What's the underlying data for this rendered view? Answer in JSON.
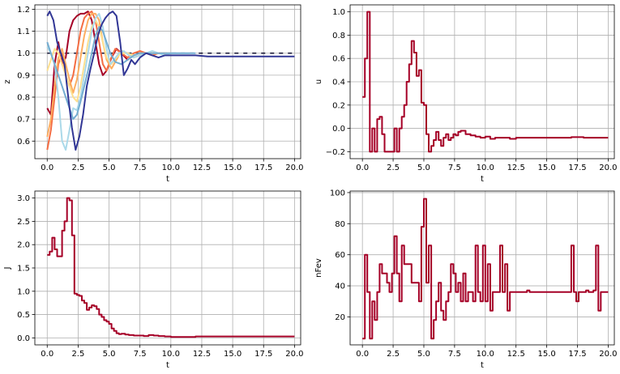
{
  "chart_data": [
    {
      "type": "line",
      "xlabel": "t",
      "ylabel": "z",
      "xlim": [
        -1,
        20.5
      ],
      "ylim": [
        0.52,
        1.22
      ],
      "xticks": [
        "0.0",
        "2.5",
        "5.0",
        "7.5",
        "10.0",
        "12.5",
        "15.0",
        "17.5",
        "20.0"
      ],
      "yticks": [
        "0.6",
        "0.7",
        "0.8",
        "0.9",
        "1.0",
        "1.1",
        "1.2"
      ],
      "grid": true,
      "reference": {
        "y": 1.0,
        "style": "dashed",
        "color": "#1a1a3a"
      },
      "series": [
        {
          "color": "#a50026",
          "x": [
            0,
            0.3,
            0.6,
            0.9,
            1.2,
            1.5,
            1.8,
            2.1,
            2.4,
            2.7,
            3.0,
            3.3,
            3.6,
            3.9,
            4.2,
            4.5,
            4.8,
            5.2,
            5.6,
            6.0,
            6.5,
            7.0,
            7.5,
            8.0,
            8.5,
            9.0
          ],
          "y": [
            0.75,
            0.72,
            0.95,
            1.05,
            0.95,
            0.98,
            1.1,
            1.15,
            1.17,
            1.18,
            1.18,
            1.19,
            1.15,
            1.05,
            0.95,
            0.9,
            0.92,
            0.98,
            1.02,
            1.0,
            0.97,
            0.99,
            1.0,
            1.0,
            1.0,
            1.0
          ]
        },
        {
          "color": "#f46d43",
          "x": [
            0,
            0.3,
            0.6,
            0.9,
            1.2,
            1.5,
            1.8,
            2.1,
            2.4,
            2.7,
            3.0,
            3.3,
            3.6,
            3.9,
            4.2,
            4.5,
            4.8,
            5.1,
            5.5,
            6.0,
            6.5,
            7.0,
            7.5,
            8.0,
            8.5,
            9.0,
            9.5
          ],
          "y": [
            0.56,
            0.65,
            0.8,
            0.95,
            1.0,
            0.9,
            0.85,
            0.9,
            1.0,
            1.1,
            1.16,
            1.18,
            1.19,
            1.15,
            1.05,
            0.95,
            0.92,
            0.97,
            1.02,
            1.0,
            0.98,
            1.0,
            1.01,
            1.0,
            0.99,
            1.0,
            1.0
          ]
        },
        {
          "color": "#fdae61",
          "x": [
            0,
            0.3,
            0.6,
            0.9,
            1.2,
            1.5,
            1.8,
            2.1,
            2.4,
            2.7,
            3.0,
            3.3,
            3.6,
            3.9,
            4.2,
            4.5,
            4.8,
            5.2,
            5.6,
            6.0,
            6.5,
            7.0,
            7.5,
            8.0,
            8.5,
            9.0,
            9.5,
            10.0
          ],
          "y": [
            0.62,
            0.7,
            0.85,
            0.98,
            1.02,
            0.95,
            0.88,
            0.82,
            0.88,
            0.98,
            1.08,
            1.15,
            1.18,
            1.18,
            1.15,
            1.05,
            0.97,
            0.93,
            0.97,
            1.01,
            1.0,
            0.98,
            0.99,
            1.0,
            1.0,
            1.0,
            1.0,
            1.0
          ]
        },
        {
          "color": "#fee090",
          "x": [
            0,
            0.3,
            0.6,
            0.9,
            1.2,
            1.5,
            1.8,
            2.1,
            2.4,
            2.7,
            3.0,
            3.3,
            3.6,
            3.9,
            4.2,
            4.5,
            4.8,
            5.2,
            5.6,
            6.0,
            6.5,
            7.0,
            7.5,
            8.0,
            8.5,
            9.0
          ],
          "y": [
            0.92,
            0.97,
            1.02,
            1.0,
            0.95,
            0.9,
            0.85,
            0.8,
            0.78,
            0.85,
            0.95,
            1.05,
            1.12,
            1.15,
            1.12,
            1.05,
            0.98,
            0.95,
            0.98,
            1.0,
            1.0,
            0.99,
            1.0,
            1.0,
            1.0,
            1.0
          ]
        },
        {
          "color": "#abd9e9",
          "x": [
            0,
            0.3,
            0.6,
            0.9,
            1.2,
            1.5,
            1.8,
            2.1,
            2.4,
            2.7,
            3.0,
            3.3,
            3.6,
            3.9,
            4.2,
            4.5,
            4.8,
            5.1,
            5.4,
            5.8,
            6.2,
            6.6,
            7.0,
            7.5,
            8.0,
            8.5,
            9.0,
            9.5,
            10.0,
            10.5,
            11.0,
            11.5
          ],
          "y": [
            1.03,
            1.0,
            0.95,
            0.8,
            0.6,
            0.56,
            0.65,
            0.75,
            0.74,
            0.8,
            0.9,
            1.0,
            1.1,
            1.16,
            1.18,
            1.12,
            1.02,
            0.95,
            0.97,
            1.0,
            1.01,
            0.99,
            0.98,
            0.99,
            1.0,
            1.01,
            1.0,
            0.99,
            1.0,
            1.0,
            1.0,
            1.0
          ]
        },
        {
          "color": "#74add1",
          "x": [
            0,
            0.3,
            0.6,
            0.9,
            1.2,
            1.5,
            1.8,
            2.1,
            2.4,
            2.7,
            3.0,
            3.3,
            3.6,
            3.9,
            4.2,
            4.5,
            4.8,
            5.1,
            5.5,
            6.0,
            6.5,
            7.0,
            7.5,
            8.0,
            8.5,
            9.0,
            9.5,
            10.0,
            10.5,
            11.0,
            11.5,
            12.0
          ],
          "y": [
            1.05,
            1.0,
            0.95,
            0.9,
            0.85,
            0.8,
            0.75,
            0.7,
            0.72,
            0.78,
            0.85,
            0.92,
            1.0,
            1.08,
            1.12,
            1.1,
            1.05,
            1.0,
            0.96,
            0.95,
            0.97,
            0.99,
            1.0,
            1.0,
            1.0,
            1.0,
            1.0,
            1.0,
            1.0,
            1.0,
            1.0,
            1.0
          ]
        },
        {
          "color": "#313695",
          "x": [
            0,
            0.2,
            0.5,
            0.8,
            1.1,
            1.4,
            1.7,
            2.0,
            2.3,
            2.6,
            2.9,
            3.2,
            3.5,
            3.8,
            4.1,
            4.4,
            4.7,
            5.0,
            5.3,
            5.6,
            5.9,
            6.2,
            6.5,
            6.8,
            7.1,
            7.5,
            8.0,
            8.5,
            9.0,
            9.5,
            10.0,
            11.0,
            12.0,
            13.0,
            14.0,
            15.0,
            16.0,
            17.0,
            18.0,
            19.0,
            20.0
          ],
          "y": [
            1.17,
            1.19,
            1.15,
            1.05,
            1.0,
            0.95,
            0.8,
            0.66,
            0.56,
            0.62,
            0.72,
            0.85,
            0.93,
            1.0,
            1.08,
            1.13,
            1.16,
            1.18,
            1.19,
            1.17,
            1.05,
            0.9,
            0.93,
            0.97,
            0.95,
            0.98,
            1.0,
            0.99,
            0.98,
            0.99,
            0.99,
            0.99,
            0.99,
            0.985,
            0.985,
            0.985,
            0.985,
            0.985,
            0.985,
            0.985,
            0.985
          ]
        }
      ]
    },
    {
      "type": "line",
      "xlabel": "t",
      "ylabel": "u",
      "xlim": [
        -1,
        20.5
      ],
      "ylim": [
        -0.26,
        1.06
      ],
      "xticks": [
        "0.0",
        "2.5",
        "5.0",
        "7.5",
        "10.0",
        "12.5",
        "15.0",
        "17.5",
        "20.0"
      ],
      "yticks": [
        "−0.2",
        "0.0",
        "0.2",
        "0.4",
        "0.6",
        "0.8",
        "1.0"
      ],
      "grid": true,
      "step": true,
      "series": [
        {
          "color": "#a50026",
          "x": [
            0,
            0.2,
            0.4,
            0.6,
            0.8,
            1.0,
            1.2,
            1.4,
            1.6,
            1.8,
            2.0,
            2.2,
            2.4,
            2.6,
            2.8,
            3.0,
            3.2,
            3.4,
            3.6,
            3.8,
            4.0,
            4.2,
            4.4,
            4.6,
            4.8,
            5.0,
            5.2,
            5.4,
            5.6,
            5.8,
            6.0,
            6.2,
            6.4,
            6.6,
            6.8,
            7.0,
            7.2,
            7.4,
            7.6,
            7.8,
            8.0,
            8.4,
            8.8,
            9.2,
            9.6,
            10.0,
            10.4,
            10.8,
            11.2,
            11.6,
            12.0,
            12.5,
            13.0,
            13.5,
            14.0,
            15.0,
            16.0,
            17.0,
            18.0,
            19.0,
            20.0
          ],
          "y": [
            0.27,
            0.6,
            1.0,
            -0.2,
            0.0,
            -0.2,
            0.08,
            0.1,
            -0.05,
            -0.2,
            -0.2,
            -0.2,
            -0.2,
            0.0,
            -0.2,
            0.0,
            0.1,
            0.2,
            0.4,
            0.55,
            0.75,
            0.65,
            0.45,
            0.5,
            0.22,
            0.2,
            -0.05,
            -0.2,
            -0.15,
            -0.1,
            -0.03,
            -0.1,
            -0.15,
            -0.08,
            -0.05,
            -0.1,
            -0.08,
            -0.05,
            -0.06,
            -0.03,
            -0.02,
            -0.05,
            -0.06,
            -0.07,
            -0.08,
            -0.07,
            -0.09,
            -0.08,
            -0.08,
            -0.08,
            -0.09,
            -0.08,
            -0.08,
            -0.08,
            -0.08,
            -0.08,
            -0.08,
            -0.075,
            -0.08,
            -0.08,
            -0.08
          ]
        }
      ]
    },
    {
      "type": "line",
      "xlabel": "t",
      "ylabel": "J",
      "xlim": [
        -1,
        20.5
      ],
      "ylim": [
        -0.15,
        3.15
      ],
      "xticks": [
        "0.0",
        "2.5",
        "5.0",
        "7.5",
        "10.0",
        "12.5",
        "15.0",
        "17.5",
        "20.0"
      ],
      "yticks": [
        "0.0",
        "0.5",
        "1.0",
        "1.5",
        "2.0",
        "2.5",
        "3.0"
      ],
      "grid": true,
      "step": true,
      "series": [
        {
          "color": "#a50026",
          "x": [
            0,
            0.2,
            0.4,
            0.6,
            0.8,
            1.0,
            1.2,
            1.4,
            1.6,
            1.8,
            2.0,
            2.2,
            2.4,
            2.6,
            2.8,
            3.0,
            3.2,
            3.4,
            3.6,
            3.8,
            4.0,
            4.2,
            4.4,
            4.6,
            4.8,
            5.0,
            5.2,
            5.4,
            5.6,
            5.8,
            6.0,
            6.3,
            6.6,
            7.0,
            7.4,
            7.8,
            8.2,
            8.6,
            9.0,
            9.5,
            10.0,
            11.0,
            12.0,
            13.0,
            14.0,
            15.0,
            16.0,
            17.0,
            18.0,
            19.0,
            20.0
          ],
          "y": [
            1.78,
            1.85,
            2.15,
            1.9,
            1.75,
            1.75,
            2.3,
            2.5,
            3.0,
            2.95,
            2.2,
            0.95,
            0.92,
            0.9,
            0.8,
            0.75,
            0.6,
            0.65,
            0.7,
            0.68,
            0.62,
            0.5,
            0.45,
            0.38,
            0.35,
            0.3,
            0.2,
            0.15,
            0.1,
            0.08,
            0.09,
            0.07,
            0.06,
            0.05,
            0.05,
            0.04,
            0.06,
            0.05,
            0.04,
            0.03,
            0.02,
            0.02,
            0.03,
            0.03,
            0.03,
            0.03,
            0.03,
            0.03,
            0.03,
            0.03,
            0.03
          ]
        }
      ]
    },
    {
      "type": "line",
      "xlabel": "t",
      "ylabel": "nFev",
      "xlim": [
        -1,
        20.5
      ],
      "ylim": [
        2,
        101
      ],
      "xticks": [
        "0.0",
        "2.5",
        "5.0",
        "7.5",
        "10.0",
        "12.5",
        "15.0",
        "17.5",
        "20.0"
      ],
      "yticks": [
        "20",
        "40",
        "60",
        "80",
        "100"
      ],
      "grid": true,
      "step": true,
      "series": [
        {
          "color": "#a50026",
          "x": [
            0,
            0.2,
            0.4,
            0.6,
            0.8,
            1.0,
            1.2,
            1.4,
            1.6,
            1.8,
            2.0,
            2.2,
            2.4,
            2.6,
            2.8,
            3.0,
            3.2,
            3.4,
            3.6,
            3.8,
            4.0,
            4.2,
            4.4,
            4.6,
            4.8,
            5.0,
            5.2,
            5.4,
            5.6,
            5.8,
            6.0,
            6.2,
            6.4,
            6.6,
            6.8,
            7.0,
            7.2,
            7.4,
            7.6,
            7.8,
            8.0,
            8.2,
            8.4,
            8.6,
            8.8,
            9.0,
            9.2,
            9.4,
            9.6,
            9.8,
            10.0,
            10.2,
            10.4,
            10.6,
            10.8,
            11.0,
            11.2,
            11.4,
            11.6,
            11.8,
            12.0,
            12.2,
            12.4,
            12.6,
            12.8,
            13.0,
            13.2,
            13.4,
            13.6,
            14.0,
            14.5,
            15.0,
            15.5,
            16.0,
            16.5,
            17.0,
            17.2,
            17.4,
            17.6,
            17.8,
            18.0,
            18.2,
            18.4,
            18.6,
            18.8,
            19.0,
            19.2,
            19.4,
            19.6,
            19.8,
            20.0
          ],
          "y": [
            6,
            60,
            36,
            6,
            30,
            18,
            36,
            54,
            48,
            48,
            42,
            36,
            48,
            72,
            48,
            30,
            66,
            54,
            54,
            54,
            42,
            42,
            42,
            30,
            78,
            96,
            42,
            66,
            6,
            18,
            30,
            42,
            24,
            18,
            30,
            36,
            54,
            48,
            36,
            42,
            30,
            48,
            30,
            36,
            36,
            30,
            66,
            36,
            30,
            66,
            30,
            54,
            24,
            36,
            36,
            36,
            66,
            36,
            54,
            24,
            36,
            36,
            36,
            36,
            36,
            36,
            36,
            37,
            36,
            36,
            36,
            36,
            36,
            36,
            36,
            66,
            36,
            30,
            36,
            36,
            36,
            37,
            36,
            36,
            37,
            66,
            24,
            36,
            36,
            36,
            36
          ]
        }
      ]
    }
  ]
}
